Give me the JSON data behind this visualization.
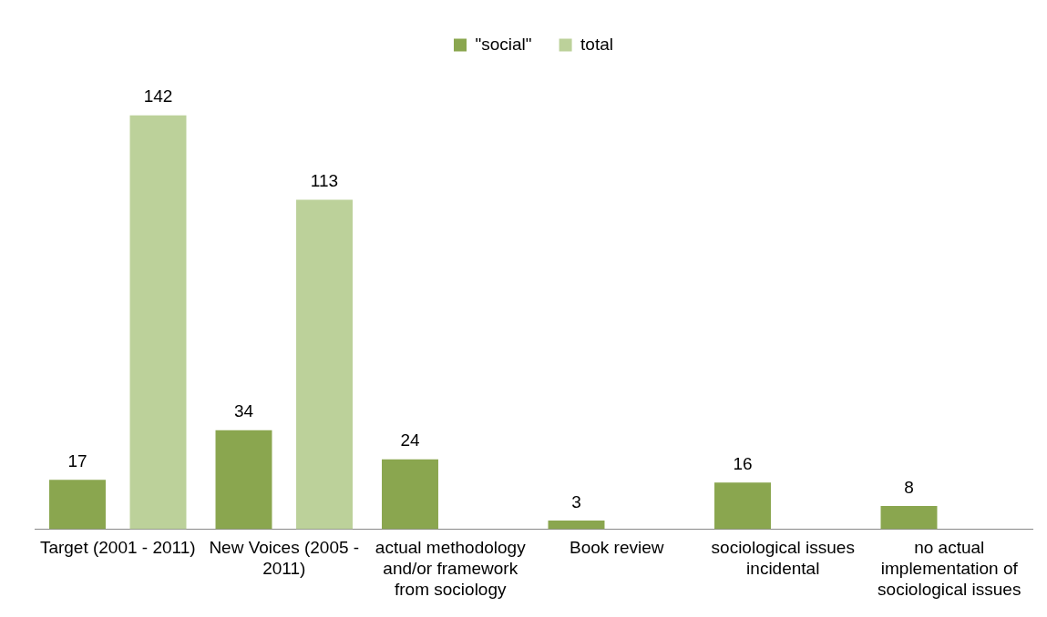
{
  "chart_data": {
    "type": "bar",
    "categories": [
      "Target (2001 - 2011)",
      "New Voices (2005 - 2011)",
      "actual methodology and/or framework from sociology",
      "Book review",
      "sociological issues incidental",
      "no actual implementation of sociological issues"
    ],
    "series": [
      {
        "name": "\"social\"",
        "color": "#8aa64f",
        "values": [
          17,
          34,
          24,
          3,
          16,
          8
        ]
      },
      {
        "name": "total",
        "color": "#bcd19a",
        "values": [
          142,
          113,
          null,
          null,
          null,
          null
        ]
      }
    ],
    "data_labels": true,
    "legend": "top",
    "grid": false
  }
}
